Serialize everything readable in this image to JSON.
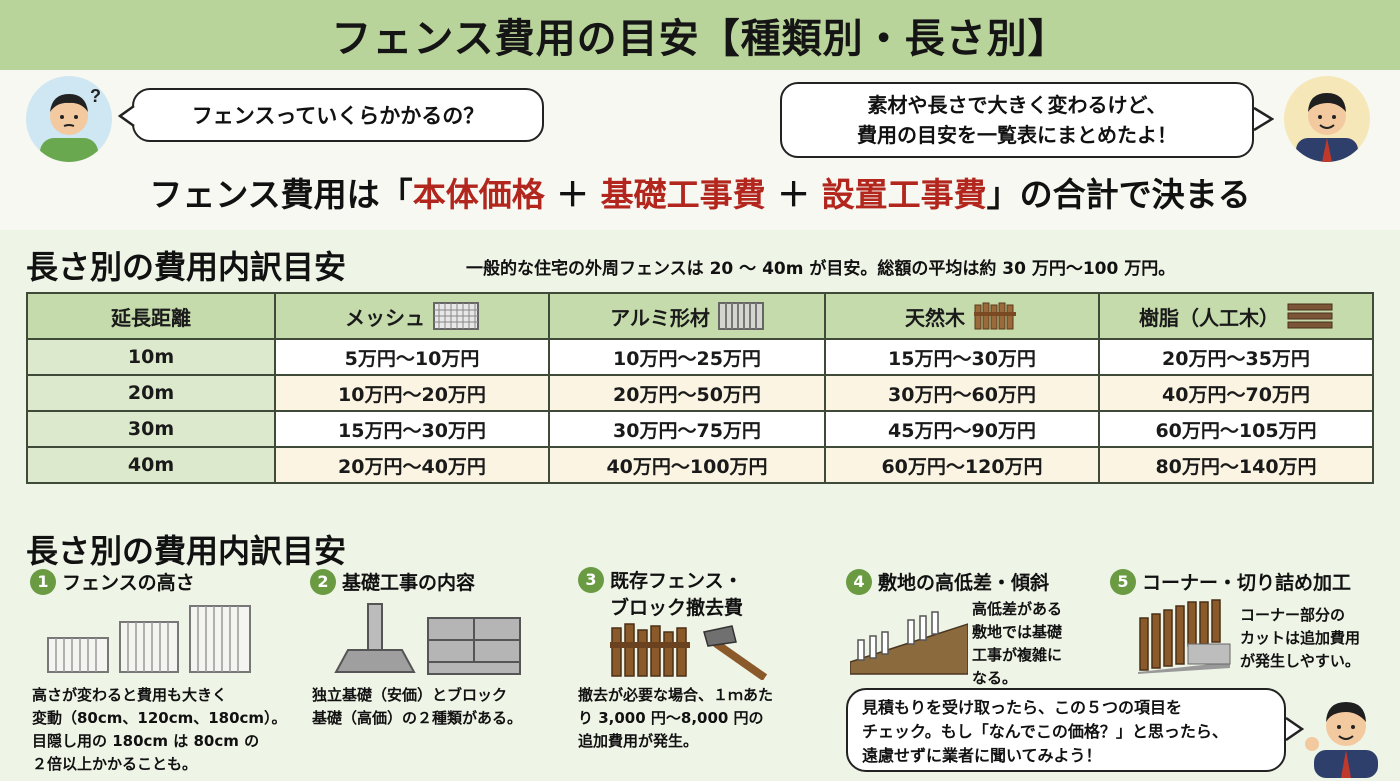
{
  "title": "フェンス費用の目安【種類別・長さ別】",
  "intro": {
    "question": "フェンスっていくらかかるの？",
    "answer_line1": "素材や長さで大きく変わるけど、",
    "answer_line2": "費用の目安を一覧表にまとめたよ！",
    "formula_prefix": "フェンス費用は「",
    "formula_item1": "本体価格",
    "formula_plus1": " ＋ ",
    "formula_item2": "基礎工事費",
    "formula_plus2": " ＋ ",
    "formula_item3": "設置工事費",
    "formula_suffix": "」の合計で決まる"
  },
  "table_section": {
    "title": "長さ別の費用内訳目安",
    "note": "一般的な住宅の外周フェンスは 20 ～ 40m が目安。総額の平均は約 30 万円～100 万円。",
    "headers": [
      "延長距離",
      "メッシュ",
      "アルミ形材",
      "天然木",
      "樹脂（人工木）"
    ],
    "rows": [
      [
        "10m",
        "5万円～10万円",
        "10万円～25万円",
        "15万円～30万円",
        "20万円～35万円"
      ],
      [
        "20m",
        "10万円～20万円",
        "20万円～50万円",
        "30万円～60万円",
        "40万円～70万円"
      ],
      [
        "30m",
        "15万円～30万円",
        "30万円～75万円",
        "45万円～90万円",
        "60万円～105万円"
      ],
      [
        "40m",
        "20万円～40万円",
        "40万円～100万円",
        "60万円～120万円",
        "80万円～140万円"
      ]
    ]
  },
  "factors_section": {
    "title": "長さ別の費用内訳目安",
    "items": [
      {
        "num": "1",
        "title": "フェンスの高さ",
        "text": [
          "高さが変わると費用も大きく",
          "変動（80cm、120cm、180cm）。",
          "目隠し用の 180cm は 80cm の",
          "２倍以上かかることも。"
        ]
      },
      {
        "num": "2",
        "title": "基礎工事の内容",
        "text": [
          "独立基礎（安価）とブロック",
          "基礎（高価）の２種類がある。"
        ]
      },
      {
        "num": "3",
        "title_line1": "既存フェンス・",
        "title_line2": "ブロック撤去費",
        "text": [
          "撤去が必要な場合、１ｍあた",
          "り 3,000 円～8,000 円の",
          "追加費用が発生。"
        ]
      },
      {
        "num": "4",
        "title": "敷地の高低差・傾斜",
        "text": [
          "高低差がある",
          "敷地では基礎",
          "工事が複雑に",
          "なる。"
        ]
      },
      {
        "num": "5",
        "title": "コーナー・切り詰め加工",
        "text": [
          "コーナー部分の",
          "カットは追加費用",
          "が発生しやすい。"
        ]
      }
    ],
    "closing": [
      "見積もりを受け取ったら、この５つの項目を",
      "チェック。もし「なんでこの価格？」と思ったら、",
      "遠慮せずに業者に聞いてみよう！"
    ]
  },
  "colors": {
    "title_bar": "#b9d49a",
    "accent_red": "#b3261e",
    "badge_green": "#6a9b43",
    "header_green": "#c5dbab"
  }
}
